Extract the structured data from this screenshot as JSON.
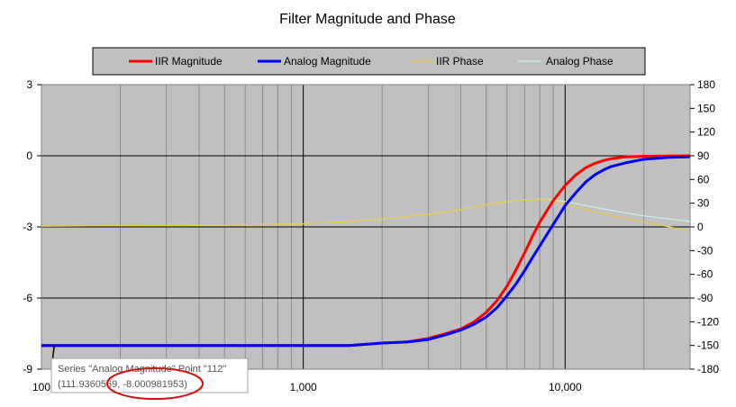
{
  "chart_data": {
    "type": "line",
    "title": "Filter Magnitude and Phase",
    "x_scale": "log",
    "xlim": [
      100,
      30000
    ],
    "x_tick_labels": [
      {
        "value": 100,
        "label": "100"
      },
      {
        "value": 1000,
        "label": "1,000"
      },
      {
        "value": 10000,
        "label": "10,000"
      }
    ],
    "y_left": {
      "lim": [
        -9,
        3
      ],
      "ticks": [
        {
          "value": 3,
          "label": "3"
        },
        {
          "value": 0,
          "label": "0"
        },
        {
          "value": -3,
          "label": "-3"
        },
        {
          "value": -6,
          "label": "-6"
        },
        {
          "value": -9,
          "label": "-9"
        }
      ]
    },
    "y_right": {
      "lim": [
        -180,
        180
      ],
      "ticks": [
        {
          "value": 180,
          "label": "180"
        },
        {
          "value": 150,
          "label": "150"
        },
        {
          "value": 120,
          "label": "120"
        },
        {
          "value": 90,
          "label": "90"
        },
        {
          "value": 60,
          "label": "60"
        },
        {
          "value": 30,
          "label": "30"
        },
        {
          "value": 0,
          "label": "0"
        },
        {
          "value": -30,
          "label": "-30"
        },
        {
          "value": -60,
          "label": "-60"
        },
        {
          "value": -90,
          "label": "-90"
        },
        {
          "value": -120,
          "label": "-120"
        },
        {
          "value": -150,
          "label": "-150"
        },
        {
          "value": -180,
          "label": "-180"
        }
      ]
    },
    "grid": true,
    "legend": "top",
    "plot_background": "#c0c0c0",
    "series": [
      {
        "name": "IIR Magnitude",
        "color": "#ff0000",
        "axis": "left",
        "x": [
          100,
          500,
          1000,
          1500,
          2000,
          2500,
          3000,
          3500,
          4000,
          4500,
          5000,
          5500,
          6000,
          6500,
          7000,
          7500,
          8000,
          9000,
          10000,
          11000,
          12000,
          13000,
          14000,
          15000,
          17000,
          20000,
          25000,
          30000
        ],
        "values": [
          -8,
          -8,
          -8,
          -8,
          -7.9,
          -7.85,
          -7.7,
          -7.5,
          -7.3,
          -7.0,
          -6.6,
          -6.1,
          -5.5,
          -4.8,
          -4.1,
          -3.4,
          -2.8,
          -1.9,
          -1.25,
          -0.8,
          -0.5,
          -0.32,
          -0.2,
          -0.12,
          -0.05,
          -0.02,
          -0.01,
          0
        ]
      },
      {
        "name": "Analog Magnitude",
        "color": "#0000ff",
        "axis": "left",
        "x": [
          100,
          500,
          1000,
          1500,
          2000,
          2500,
          3000,
          3500,
          4000,
          4500,
          5000,
          5500,
          6000,
          6500,
          7000,
          7500,
          8000,
          9000,
          10000,
          11000,
          12000,
          13000,
          14000,
          15000,
          17000,
          20000,
          25000,
          30000
        ],
        "values": [
          -8,
          -8,
          -8,
          -8,
          -7.9,
          -7.85,
          -7.75,
          -7.55,
          -7.35,
          -7.1,
          -6.8,
          -6.4,
          -5.9,
          -5.4,
          -4.85,
          -4.3,
          -3.8,
          -2.9,
          -2.1,
          -1.55,
          -1.1,
          -0.8,
          -0.6,
          -0.45,
          -0.3,
          -0.15,
          -0.07,
          -0.04
        ]
      },
      {
        "name": "IIR Phase",
        "color": "#e8c840",
        "axis": "right",
        "x": [
          100,
          500,
          1000,
          1500,
          2000,
          3000,
          4000,
          5000,
          6000,
          7000,
          8000,
          9000,
          10000,
          12000,
          15000,
          20000,
          25000,
          30000
        ],
        "values": [
          1,
          2,
          4,
          7,
          10,
          16,
          22,
          28,
          32,
          34,
          35,
          33,
          29,
          22,
          14,
          6,
          0,
          -5
        ]
      },
      {
        "name": "Analog Phase",
        "color": "#c8f0f0",
        "axis": "right",
        "x": [
          100,
          500,
          1000,
          1500,
          2000,
          3000,
          4000,
          5000,
          6000,
          7000,
          8000,
          9000,
          10000,
          12000,
          15000,
          20000,
          25000,
          30000
        ],
        "values": [
          1,
          2,
          4,
          7,
          10,
          16,
          22,
          28,
          32,
          34,
          35,
          34,
          32,
          27,
          21,
          14,
          10,
          7
        ]
      }
    ],
    "tooltip": {
      "line1": "Series \"Analog Magnitude\" Point \"112\"",
      "line2": "(111.9360569, -8.000981953)",
      "anchor_x": 111.9360569,
      "anchor_y": -8.000981953
    }
  }
}
